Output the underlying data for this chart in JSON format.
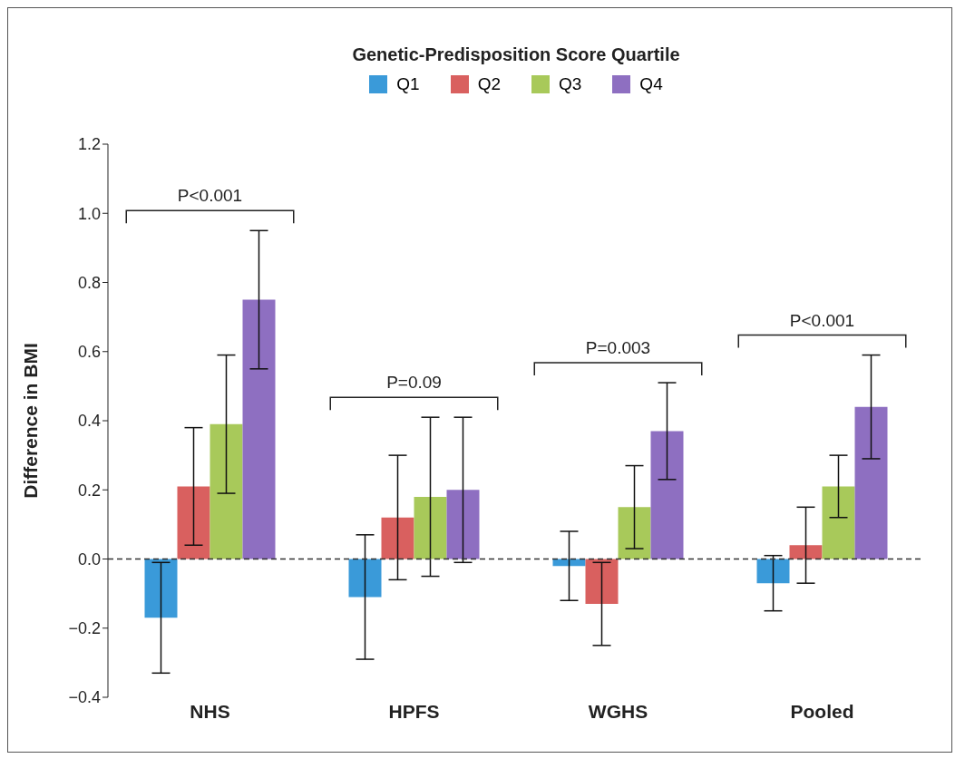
{
  "chart_data": {
    "type": "bar",
    "legend_title": "Genetic-Predisposition Score Quartile",
    "ylabel": "Difference in BMI",
    "categories": [
      "NHS",
      "HPFS",
      "WGHS",
      "Pooled"
    ],
    "series": [
      {
        "name": "Q1",
        "color": "#3a9ad9",
        "values": [
          -0.17,
          -0.11,
          -0.02,
          -0.07
        ],
        "errors": [
          [
            -0.33,
            -0.01
          ],
          [
            -0.29,
            0.07
          ],
          [
            -0.12,
            0.08
          ],
          [
            -0.15,
            0.01
          ]
        ]
      },
      {
        "name": "Q2",
        "color": "#d9605f",
        "values": [
          0.21,
          0.12,
          -0.13,
          0.04
        ],
        "errors": [
          [
            0.04,
            0.38
          ],
          [
            -0.06,
            0.3
          ],
          [
            -0.25,
            -0.01
          ],
          [
            -0.07,
            0.15
          ]
        ]
      },
      {
        "name": "Q3",
        "color": "#a8c95a",
        "values": [
          0.39,
          0.18,
          0.15,
          0.21
        ],
        "errors": [
          [
            0.19,
            0.59
          ],
          [
            -0.05,
            0.41
          ],
          [
            0.03,
            0.27
          ],
          [
            0.12,
            0.3
          ]
        ]
      },
      {
        "name": "Q4",
        "color": "#8e6fc1",
        "values": [
          0.75,
          0.2,
          0.37,
          0.44
        ],
        "errors": [
          [
            0.55,
            0.95
          ],
          [
            -0.01,
            0.41
          ],
          [
            0.23,
            0.51
          ],
          [
            0.29,
            0.59
          ]
        ]
      }
    ],
    "ylim": [
      -0.4,
      1.2
    ],
    "yticks": [
      {
        "value": -0.4,
        "label": "−0.4"
      },
      {
        "value": -0.2,
        "label": "−0.2"
      },
      {
        "value": 0,
        "label": "0.0"
      },
      {
        "value": 0.2,
        "label": "0.2"
      },
      {
        "value": 0.4,
        "label": "0.4"
      },
      {
        "value": 0.6,
        "label": "0.6"
      },
      {
        "value": 0.8,
        "label": "0.8"
      },
      {
        "value": 1,
        "label": "1.0"
      },
      {
        "value": 1.2,
        "label": "1.2"
      }
    ],
    "ref_lines": [
      {
        "axis": "y",
        "value": 0,
        "line_style": "dashed",
        "color": "#333333"
      }
    ],
    "annotations": [
      "P<0.001",
      "P=0.09",
      "P=0.003",
      "P<0.001"
    ],
    "legend": "top",
    "grid": false
  }
}
